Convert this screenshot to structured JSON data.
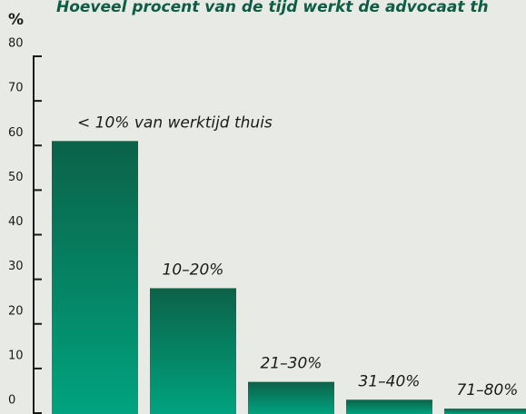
{
  "chart_data": {
    "type": "bar",
    "title": "Hoeveel procent van de tijd werkt de advocaat th",
    "y_label": "%",
    "categories": [
      "< 10% van werktijd thuis",
      "10–20%",
      "21–30%",
      "31–40%",
      "71–80%"
    ],
    "values": [
      61,
      28,
      7,
      3,
      1
    ],
    "color": [
      "#0b6248",
      "#00a37f"
    ],
    "ylim": [
      0,
      80
    ],
    "yticks": [
      0,
      10,
      20,
      30,
      40,
      50,
      60,
      70,
      80
    ]
  }
}
